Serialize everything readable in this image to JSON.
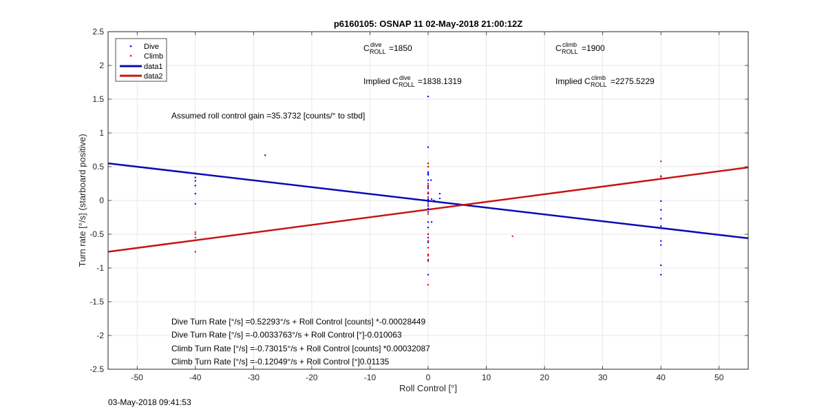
{
  "chart_data": {
    "type": "scatter",
    "title": "p6160105: OSNAP 11 02-May-2018 21:00:12Z",
    "xlabel": "Roll Control [°]",
    "ylabel": "Turn rate [°/s] (starboard positive)",
    "xlim": [
      -55,
      55
    ],
    "ylim": [
      -2.5,
      2.5
    ],
    "xticks": [
      -50,
      -40,
      -30,
      -20,
      -10,
      0,
      10,
      20,
      30,
      40,
      50
    ],
    "yticks": [
      -2.5,
      -2,
      -1.5,
      -1,
      -0.5,
      0,
      0.5,
      1,
      1.5,
      2,
      2.5
    ],
    "grid": true,
    "legend": {
      "position": "top-left",
      "entries": [
        "Dive",
        "Climb",
        "data1",
        "data2"
      ]
    },
    "colors": {
      "dive": "#0000ff",
      "climb": "#ff0000",
      "data1": "#0a0ab4",
      "data2": "#c81414"
    },
    "series": [
      {
        "name": "Dive",
        "kind": "points",
        "points": [
          [
            -40,
            0.34
          ],
          [
            -40,
            0.29
          ],
          [
            -40,
            0.22
          ],
          [
            -40,
            0.1
          ],
          [
            -40,
            -0.05
          ],
          [
            -28,
            0.67
          ],
          [
            0,
            1.54
          ],
          [
            0,
            0.79
          ],
          [
            0,
            0.55
          ],
          [
            0,
            0.5
          ],
          [
            0,
            0.42
          ],
          [
            0,
            0.4
          ],
          [
            0,
            0.38
          ],
          [
            0,
            0.3
          ],
          [
            0,
            0.22
          ],
          [
            0,
            0.18
          ],
          [
            0,
            0.1
          ],
          [
            0,
            0.05
          ],
          [
            0,
            0.02
          ],
          [
            0,
            0.0
          ],
          [
            0,
            -0.02
          ],
          [
            0,
            -0.05
          ],
          [
            0,
            -0.08
          ],
          [
            0,
            -0.12
          ],
          [
            0,
            -0.17
          ],
          [
            0,
            -0.32
          ],
          [
            0,
            -0.4
          ],
          [
            0,
            -0.5
          ],
          [
            0,
            -0.55
          ],
          [
            0,
            -0.62
          ],
          [
            0,
            -0.7
          ],
          [
            0,
            -0.8
          ],
          [
            0,
            -0.88
          ],
          [
            0,
            -1.1
          ],
          [
            0.5,
            0.3
          ],
          [
            0.6,
            0.02
          ],
          [
            0.6,
            -0.32
          ],
          [
            1,
            0.0
          ],
          [
            2,
            0.1
          ],
          [
            2,
            0.03
          ],
          [
            40,
            0.36
          ],
          [
            40,
            -0.01
          ],
          [
            40,
            -0.14
          ],
          [
            40,
            -0.27
          ],
          [
            40,
            -0.38
          ],
          [
            40,
            -0.6
          ],
          [
            40,
            -0.66
          ],
          [
            40,
            -0.96
          ],
          [
            40,
            -1.1
          ]
        ]
      },
      {
        "name": "Climb",
        "kind": "points",
        "points": [
          [
            -40,
            -0.47
          ],
          [
            -40,
            -0.5
          ],
          [
            -40,
            -0.55
          ],
          [
            -40,
            -0.76
          ],
          [
            0,
            0.55
          ],
          [
            0,
            0.5
          ],
          [
            0,
            0.25
          ],
          [
            0,
            0.2
          ],
          [
            0,
            0.12
          ],
          [
            0,
            0.05
          ],
          [
            0,
            -0.05
          ],
          [
            0,
            -0.2
          ],
          [
            0,
            -0.5
          ],
          [
            0,
            -0.6
          ],
          [
            0,
            -0.7
          ],
          [
            0,
            -0.8
          ],
          [
            0,
            -0.82
          ],
          [
            0,
            -0.9
          ],
          [
            0,
            -1.25
          ],
          [
            14.5,
            -0.53
          ],
          [
            40,
            0.58
          ],
          [
            40,
            0.35
          ]
        ]
      },
      {
        "name": "data1",
        "kind": "line",
        "points": [
          [
            -55,
            0.55
          ],
          [
            55,
            -0.56
          ]
        ]
      },
      {
        "name": "data2",
        "kind": "line",
        "points": [
          [
            -55,
            -0.76
          ],
          [
            55,
            0.49
          ]
        ]
      }
    ],
    "annotations": {
      "c_roll_dive": {
        "main": "C",
        "sup": "dive",
        "sub": "ROLL",
        "value": "=1850"
      },
      "c_roll_climb": {
        "main": "C",
        "sup": "climb",
        "sub": "ROLL",
        "value": "=1900"
      },
      "implied_dive": {
        "prefix": "Implied C",
        "sup": "dive",
        "sub": "ROLL",
        "value": "=1838.1319"
      },
      "implied_climb": {
        "prefix": "Implied C",
        "sup": "climb",
        "sub": "ROLL",
        "value": "=2275.5229"
      },
      "gain": "Assumed roll control gain =35.3732 [counts/° to stbd]",
      "fit_lines": [
        "Dive Turn Rate [°/s] =0.52293°/s + Roll Control [counts] *-0.00028449",
        "Dive Turn Rate [°/s] =-0.0033763°/s + Roll Control [°]-0.010063",
        "Climb Turn Rate [°/s] =-0.73015°/s + Roll Control [counts] *0.00032087",
        "Climb Turn Rate [°/s] =-0.12049°/s + Roll Control [°]0.01135"
      ]
    }
  },
  "timestamp": "03-May-2018 09:41:53"
}
